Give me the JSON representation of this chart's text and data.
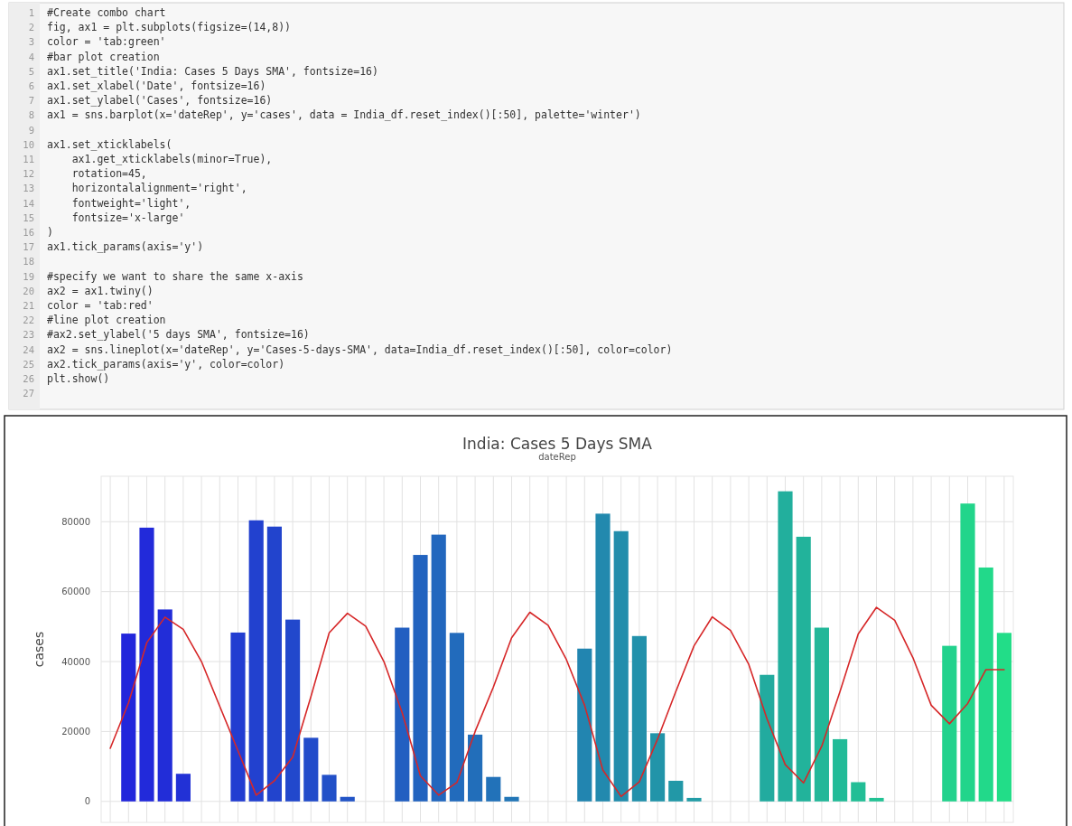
{
  "chart_data": {
    "type": "bar",
    "title": "India: Cases 5 Days SMA",
    "x2label": "dateRep",
    "ylabel": "cases",
    "categories": [
      null,
      null,
      null,
      null,
      null,
      null,
      null,
      null,
      null,
      null,
      null,
      null,
      null,
      null,
      null,
      null,
      null,
      null,
      null,
      null,
      null,
      null,
      null,
      null,
      null,
      null,
      null,
      null,
      null,
      null,
      null,
      null,
      null,
      null,
      null,
      null,
      null,
      null,
      null,
      null,
      null,
      null,
      null,
      null,
      null,
      null,
      null,
      null,
      null,
      null
    ],
    "ylim": [
      -6000,
      93000
    ],
    "yticks": [
      0,
      20000,
      40000,
      60000,
      80000
    ],
    "grid": true,
    "series": [
      {
        "values": [
          0,
          48000,
          78300,
          54900,
          7900,
          0,
          0,
          48300,
          80400,
          78600,
          52000,
          18200,
          7600,
          1300,
          0,
          0,
          49700,
          70500,
          76300,
          48200,
          19100,
          7000,
          1300,
          0,
          0,
          0,
          43700,
          82300,
          77300,
          47300,
          19500,
          5900,
          1000,
          0,
          0,
          0,
          36200,
          88700,
          75700,
          49700,
          17800,
          5500,
          1000,
          0,
          0,
          0,
          44500,
          85200,
          66900,
          48200
        ],
        "colors": [
          "#2222dd",
          "#2226db",
          "#222ada",
          "#222dd8",
          "#2231d6",
          "#2235d4",
          "#2239d3",
          "#223dd1",
          "#2241cf",
          "#2244cd",
          "#2248cc",
          "#224cca",
          "#2250c8",
          "#2254c6",
          "#2257c5",
          "#225bc3",
          "#225fc1",
          "#2263bf",
          "#2267be",
          "#226bbc",
          "#226eba",
          "#2272b9",
          "#2276b7",
          "#227ab5",
          "#227eb3",
          "#2281b2",
          "#2285b0",
          "#2289ae",
          "#228dac",
          "#2291ab",
          "#2294a9",
          "#2298a7",
          "#229ca6",
          "#22a0a4",
          "#22a4a2",
          "#22a8a0",
          "#22ab9f",
          "#22af9d",
          "#22b39b",
          "#22b799",
          "#22bb98",
          "#22be96",
          "#22c294",
          "#22c692",
          "#22ca91",
          "#22ce8f",
          "#22d28d",
          "#22d58b",
          "#22d98a",
          "#22dd88"
        ]
      },
      {
        "type": "line",
        "color": "#d62728",
        "values": [
          15200,
          28200,
          45400,
          52700,
          49200,
          40000,
          27200,
          14500,
          1800,
          5900,
          12700,
          30000,
          48200,
          53800,
          50100,
          40000,
          25400,
          7300,
          1800,
          5400,
          20000,
          32700,
          46800,
          54100,
          50400,
          40600,
          27500,
          9000,
          1400,
          5600,
          17800,
          31400,
          44500,
          52800,
          48900,
          39200,
          23600,
          10500,
          5300,
          15800,
          31400,
          47900,
          55500,
          51800,
          41100,
          27500,
          22200,
          28000,
          37700,
          37700
        ]
      }
    ],
    "annotations": [
      "1 #Create combo chart",
      "2 fig, ax1 = plt.subplots(figsize=(14,8))",
      "3 color = 'tab:green'",
      "4 #bar plot creation",
      "5 ax1.set_title('India: Cases 5 Days SMA', fontsize=16)",
      "6 ax1.set_xlabel('Date', fontsize=16)",
      "7 ax1.set_ylabel('Cases', fontsize=16)",
      "8 ax1 = sns.barplot(x='dateRep', y='cases', data = India_df.reset_index()[:50], palette='winter')",
      "9 ",
      "10 ax1.set_xticklabels(",
      "11     ax1.get_xticklabels(minor=True),",
      "12     rotation=45,",
      "13     horizontalalignment='right',",
      "14     fontweight='light',",
      "15     fontsize='x-large'",
      "16 )",
      "17 ax1.tick_params(axis='y')",
      "18 ",
      "19 #specify we want to share the same x-axis",
      "20 ax2 = ax1.twiny()",
      "21 color = 'tab:red'",
      "22 #line plot creation",
      "23 #ax2.set_ylabel('5 days SMA', fontsize=16)",
      "24 ax2 = sns.lineplot(x='dateRep', y='Cases-5-days-SMA', data=India_df.reset_index()[:50], color=color)",
      "25 ax2.tick_params(axis='y', color=color)",
      "26 plt.show()",
      "27 "
    ]
  }
}
